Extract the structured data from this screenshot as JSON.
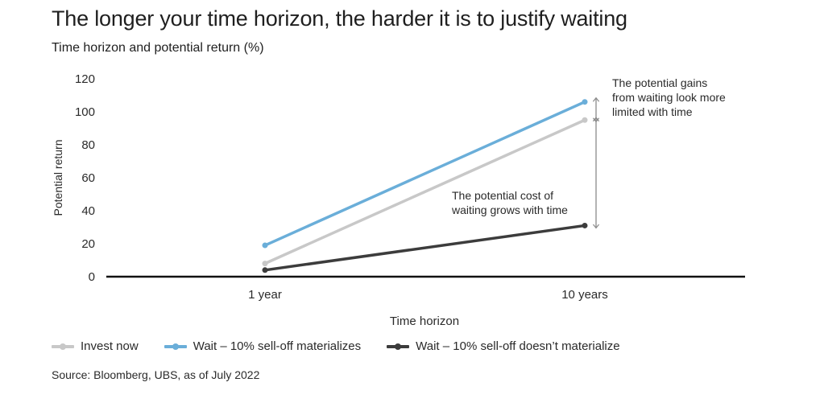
{
  "header": {
    "title": "The longer your time horizon, the harder it is to justify waiting",
    "subtitle": "Time horizon and potential return (%)"
  },
  "chart_data": {
    "type": "line",
    "categories": [
      "1 year",
      "10 years"
    ],
    "xlabel": "Time horizon",
    "ylabel": "Potential return",
    "ylim": [
      0,
      120
    ],
    "yticks": [
      0,
      20,
      40,
      60,
      80,
      100,
      120
    ],
    "grid": false,
    "series": [
      {
        "name": "Invest now",
        "values": [
          8,
          95
        ],
        "color": "#c8c8c8"
      },
      {
        "name": "Wait – 10% sell-off materializes",
        "values": [
          19,
          106
        ],
        "color": "#6aaed9"
      },
      {
        "name": "Wait – 10% sell-off doesn’t materialize",
        "values": [
          4,
          31
        ],
        "color": "#3c3c3c"
      }
    ],
    "annotations": [
      {
        "text_lines": [
          "The potential gains",
          "from waiting look more",
          "limited with time"
        ],
        "between": [
          95,
          106
        ]
      },
      {
        "text_lines": [
          "The potential cost of",
          "waiting grows with time"
        ],
        "between": [
          31,
          95
        ]
      }
    ],
    "legend_position": "bottom-left"
  },
  "footer": {
    "source": "Source: Bloomberg, UBS, as of July 2022"
  }
}
